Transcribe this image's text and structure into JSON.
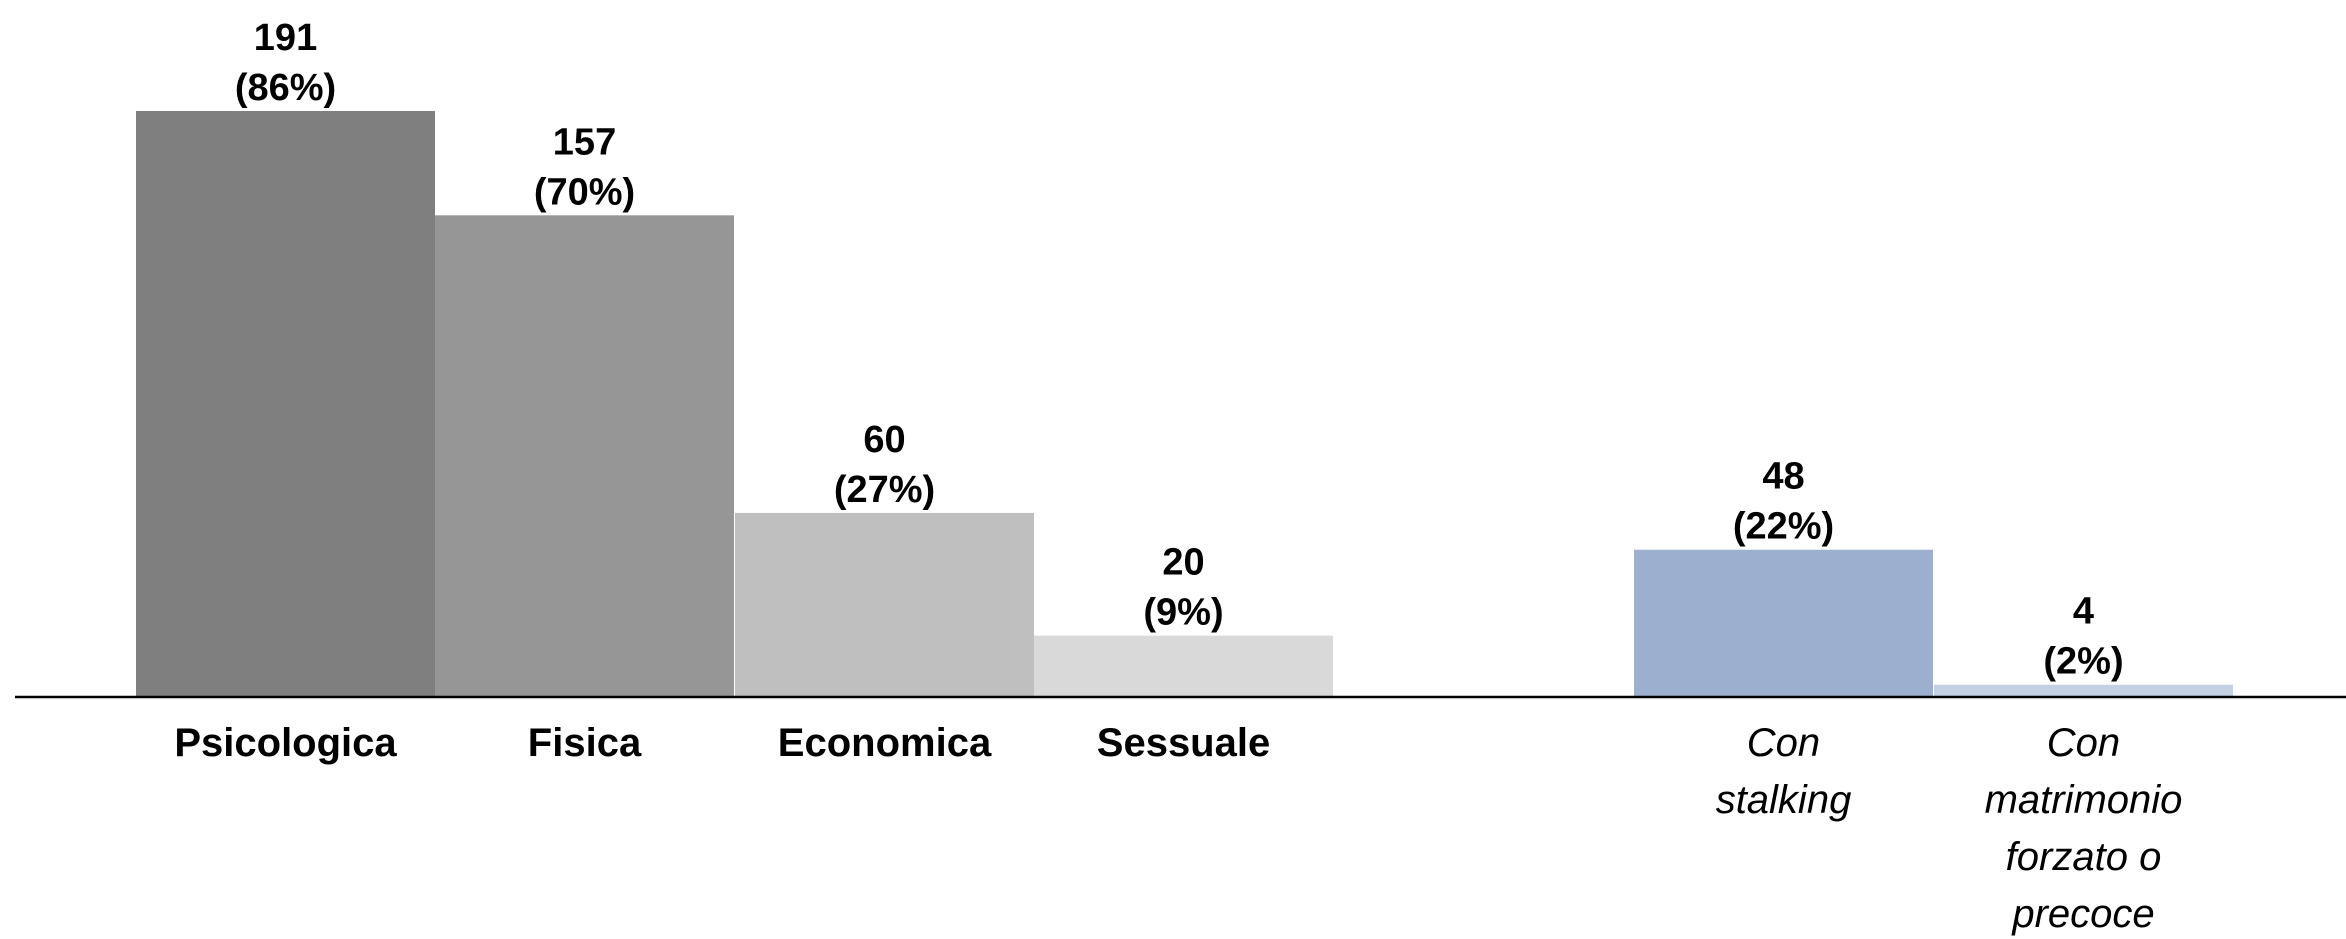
{
  "chart_data": {
    "type": "bar",
    "title": "",
    "xlabel": "",
    "ylabel": "",
    "ylim": [
      0,
      191
    ],
    "grid": false,
    "legend": "none",
    "categories": [
      "Psicologica",
      "Fisica",
      "Economica",
      "Sessuale",
      "Con stalking",
      "Con matrimonio forzato o precoce"
    ],
    "values": [
      191,
      157,
      60,
      20,
      48,
      4
    ],
    "percent_labels": [
      "(86%)",
      "(70%)",
      "(27%)",
      "(9%)",
      "(22%)",
      "(2%)"
    ],
    "category_label_lines": [
      [
        "Psicologica"
      ],
      [
        "Fisica"
      ],
      [
        "Economica"
      ],
      [
        "Sessuale"
      ],
      [
        "Con",
        "stalking"
      ],
      [
        "Con",
        "matrimonio",
        "forzato o",
        "precoce"
      ]
    ],
    "bar_colors": [
      "#7f7f7f",
      "#969696",
      "#bfbfbf",
      "#d9d9d9",
      "#9dafce",
      "#c4d1e4"
    ],
    "label_styles": [
      "bold",
      "bold",
      "bold",
      "bold",
      "italic",
      "italic"
    ]
  }
}
